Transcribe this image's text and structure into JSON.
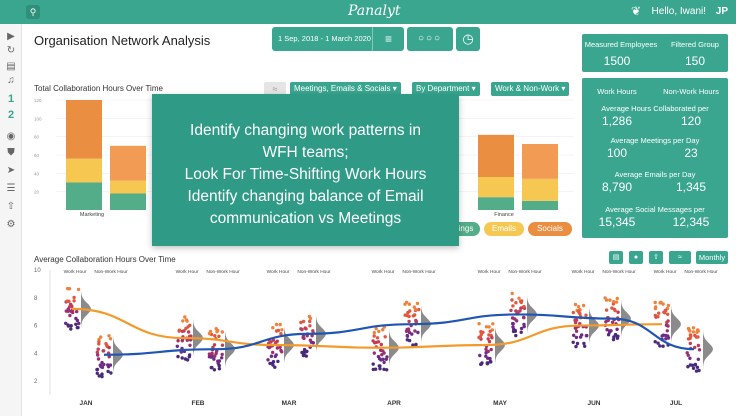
{
  "header": {
    "brand": "Panalyt",
    "greeting": "Hello, Iwani!",
    "initials": "JP",
    "search_icon": "search-icon",
    "bird_icon": "bird-icon"
  },
  "sidebar": {
    "num1": "1",
    "num2": "2"
  },
  "page": {
    "title": "Organisation Network Analysis",
    "date_range": "1 Sep, 2018 - 1 March 2020",
    "menu_icon": "≡",
    "dots": "○○○",
    "clock_icon": "◷"
  },
  "stats": {
    "measured_employees_label": "Measured Employees",
    "measured_employees": "1500",
    "filtered_group_label": "Filtered Group",
    "filtered_group": "150",
    "work_hours_label": "Work Hours",
    "non_work_hours_label": "Non-Work Hours",
    "avg_hours_label": "Average Hours Collaborated per",
    "avg_hours_work": "1,286",
    "avg_hours_nonwork": "120",
    "avg_meetings_label": "Average Meetings per Day",
    "avg_meetings_work": "100",
    "avg_meetings_nonwork": "23",
    "avg_emails_label": "Average Emails per Day",
    "avg_emails_work": "8,790",
    "avg_emails_nonwork": "1,345",
    "avg_social_label": "Average Social Messages per",
    "avg_social_work": "15,345",
    "avg_social_nonwork": "12,345"
  },
  "chart1": {
    "title": "Total Collaboration Hours Over Time",
    "filter_type": "Meetings, Emails & Socials ▾",
    "filter_group": "By Department ▾",
    "filter_hours": "Work & Non-Work ▾",
    "legend_meetings": "ings",
    "legend_emails": "Emails",
    "legend_socials": "Socials",
    "colors": {
      "green": "#52ad88",
      "yellow": "#f6c852",
      "orange": "#ea8f42",
      "orange_light": "#f19b55"
    }
  },
  "overlay": {
    "line1": "Identify changing work patterns in",
    "line2": "WFH teams;",
    "line3": "Look For Time-Shifting Work Hours",
    "line4": "Identify changing balance of Email",
    "line5": "communication vs Meetings"
  },
  "chart2": {
    "title": "Average Collaboration Hours Over Time",
    "monthly": "Monthly",
    "work_hour_label": "Work Hour",
    "non_work_hour_label": "Non-Work Hour"
  },
  "chart_data": [
    {
      "type": "bar",
      "title": "Total Collaboration Hours Over Time",
      "categories": [
        "Marketing",
        "",
        "",
        "",
        "Finance",
        ""
      ],
      "y_ticks": [
        "120",
        "100",
        "80",
        "60",
        "40",
        "20"
      ],
      "series": [
        {
          "name": "Meetings",
          "values": [
            30,
            18,
            0,
            0,
            14,
            10
          ]
        },
        {
          "name": "Emails",
          "values": [
            26,
            14,
            0,
            0,
            22,
            24
          ]
        },
        {
          "name": "Socials",
          "values": [
            64,
            38,
            0,
            0,
            46,
            38
          ]
        }
      ],
      "ylim": [
        0,
        120
      ]
    },
    {
      "type": "scatter",
      "title": "Average Collaboration Hours Over Time",
      "x_labels": [
        "JAN",
        "FEB",
        "MAR",
        "APR",
        "MAY",
        "JUN",
        "JUL"
      ],
      "y_ticks": [
        "10",
        "8",
        "6",
        "4",
        "2"
      ],
      "ylim": [
        1,
        10
      ],
      "series": [
        {
          "name": "Work Hour",
          "color": "#f39a2c",
          "x": [
            0,
            1,
            2,
            3,
            4,
            5,
            6
          ],
          "values": [
            7.2,
            5.1,
            4.6,
            4.4,
            4.6,
            6.0,
            6.1
          ]
        },
        {
          "name": "Non-Work Hour",
          "color": "#1f56b3",
          "x": [
            0,
            1,
            2,
            3,
            4,
            5,
            6
          ],
          "values": [
            3.9,
            4.3,
            5.4,
            6.1,
            6.8,
            6.5,
            4.3
          ]
        }
      ]
    }
  ]
}
